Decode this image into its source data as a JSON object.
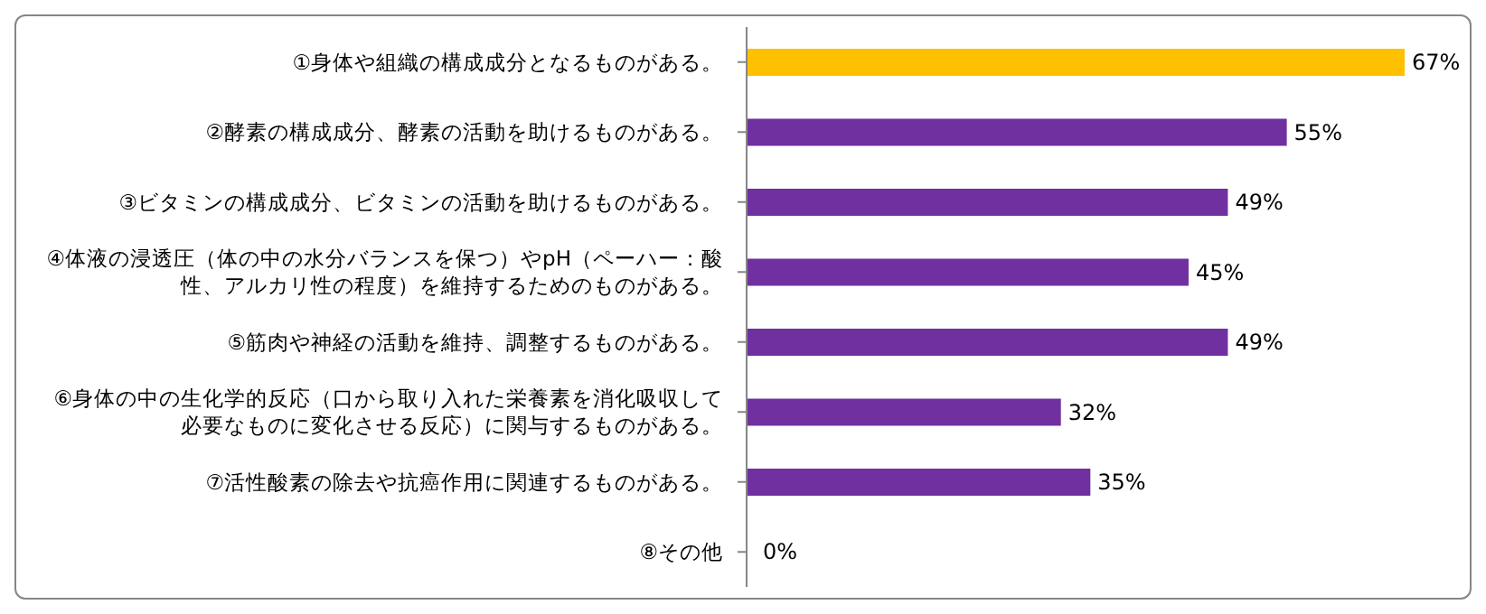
{
  "chart_data": {
    "type": "bar",
    "orientation": "horizontal",
    "categories": [
      "①身体や組織の構成成分となるものがある。",
      "②酵素の構成成分、酵素の活動を助けるものがある。",
      "③ビタミンの構成成分、ビタミンの活動を助けるものがある。",
      "④体液の浸透圧（体の中の水分バランスを保つ）やpH（ペーハー：酸性、アルカリ性の程度）を維持するためのものがある。",
      "⑤筋肉や神経の活動を維持、調整するものがある。",
      "⑥身体の中の生化学的反応（口から取り入れた栄養素を消化吸収して必要なものに変化させる反応）に関与するものがある。",
      "⑦活性酸素の除去や抗癌作用に関連するものがある。",
      "⑧その他"
    ],
    "values": [
      67,
      55,
      49,
      45,
      49,
      32,
      35,
      0
    ],
    "value_labels": [
      "67%",
      "55%",
      "49%",
      "45%",
      "49%",
      "32%",
      "35%",
      "0%"
    ],
    "colors": [
      "#ffc000",
      "#7030a0",
      "#7030a0",
      "#7030a0",
      "#7030a0",
      "#7030a0",
      "#7030a0",
      "#7030a0"
    ],
    "tick_labels": "y",
    "grid": false,
    "legend": false
  }
}
